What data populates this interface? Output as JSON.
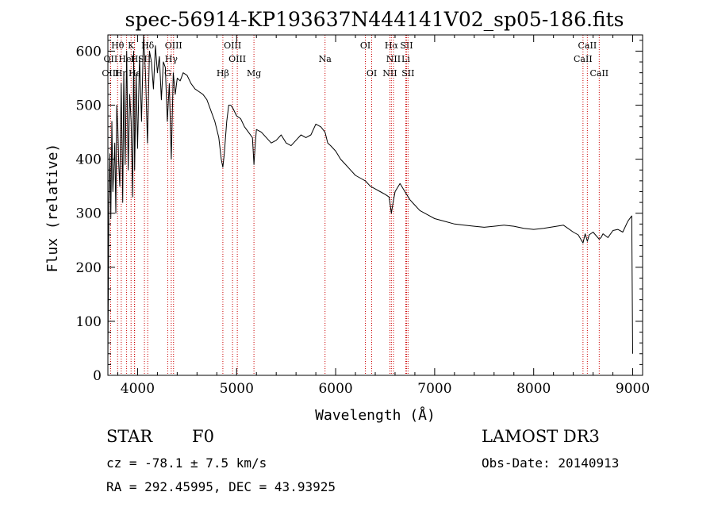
{
  "chart_data": {
    "type": "line",
    "title": "spec-56914-KP193637N444141V02_sp05-186.fits",
    "xlabel": "Wavelength (Å)",
    "ylabel": "Flux (relative)",
    "xlim": [
      3700,
      9100
    ],
    "ylim": [
      0,
      630
    ],
    "x_ticks": [
      4000,
      5000,
      6000,
      7000,
      8000,
      9000
    ],
    "y_ticks": [
      0,
      100,
      200,
      300,
      400,
      500,
      600
    ],
    "series": [
      {
        "name": "spectrum",
        "x": [
          3700,
          3710,
          3720,
          3730,
          3740,
          3750,
          3760,
          3770,
          3780,
          3790,
          3800,
          3810,
          3820,
          3835,
          3850,
          3860,
          3875,
          3890,
          3905,
          3920,
          3935,
          3950,
          3960,
          3970,
          3985,
          4000,
          4020,
          4040,
          4060,
          4080,
          4100,
          4120,
          4140,
          4160,
          4180,
          4200,
          4220,
          4240,
          4260,
          4280,
          4300,
          4320,
          4340,
          4360,
          4380,
          4400,
          4430,
          4460,
          4500,
          4540,
          4580,
          4620,
          4660,
          4700,
          4740,
          4780,
          4820,
          4845,
          4861,
          4875,
          4900,
          4920,
          4940,
          4960,
          5000,
          5040,
          5080,
          5120,
          5160,
          5175,
          5185,
          5200,
          5250,
          5300,
          5350,
          5400,
          5450,
          5500,
          5550,
          5600,
          5650,
          5700,
          5750,
          5800,
          5850,
          5893,
          5920,
          5950,
          6000,
          6050,
          6100,
          6150,
          6200,
          6250,
          6300,
          6350,
          6400,
          6450,
          6500,
          6540,
          6563,
          6580,
          6600,
          6650,
          6700,
          6750,
          6800,
          6850,
          6900,
          6950,
          7000,
          7100,
          7200,
          7300,
          7400,
          7500,
          7600,
          7700,
          7800,
          7900,
          8000,
          8100,
          8200,
          8300,
          8400,
          8450,
          8498,
          8520,
          8542,
          8560,
          8600,
          8662,
          8680,
          8700,
          8750,
          8800,
          8850,
          8900,
          8950,
          8990,
          9000
        ],
        "y": [
          30,
          320,
          410,
          290,
          470,
          340,
          380,
          430,
          300,
          500,
          460,
          390,
          350,
          540,
          320,
          560,
          390,
          600,
          380,
          520,
          470,
          330,
          600,
          380,
          560,
          420,
          590,
          470,
          630,
          560,
          430,
          600,
          580,
          530,
          610,
          560,
          590,
          510,
          580,
          570,
          470,
          540,
          400,
          560,
          520,
          550,
          545,
          560,
          555,
          540,
          530,
          525,
          520,
          510,
          490,
          470,
          440,
          400,
          385,
          410,
          470,
          500,
          500,
          495,
          480,
          475,
          460,
          450,
          440,
          390,
          420,
          455,
          450,
          440,
          430,
          435,
          445,
          430,
          425,
          435,
          445,
          440,
          445,
          465,
          460,
          450,
          430,
          425,
          415,
          400,
          390,
          380,
          370,
          365,
          360,
          350,
          345,
          340,
          335,
          330,
          300,
          320,
          340,
          355,
          340,
          325,
          315,
          305,
          300,
          295,
          290,
          285,
          280,
          278,
          276,
          274,
          276,
          278,
          276,
          272,
          270,
          272,
          275,
          278,
          265,
          260,
          245,
          262,
          248,
          260,
          265,
          252,
          255,
          262,
          255,
          268,
          270,
          265,
          285,
          295,
          40
        ]
      }
    ],
    "line_markers": [
      {
        "label": "Hθ",
        "x": 3798,
        "row": 1
      },
      {
        "label": "K",
        "x": 3934,
        "row": 1
      },
      {
        "label": "Hδ",
        "x": 4102,
        "row": 1
      },
      {
        "label": "OIII",
        "x": 4363,
        "row": 1
      },
      {
        "label": "OIII",
        "x": 4959,
        "row": 1
      },
      {
        "label": "OI",
        "x": 6300,
        "row": 1
      },
      {
        "label": "Hα",
        "x": 6563,
        "row": 1
      },
      {
        "label": "SII",
        "x": 6716,
        "row": 1
      },
      {
        "label": "CaII",
        "x": 8542,
        "row": 1
      },
      {
        "label": "OII",
        "x": 3727,
        "row": 2
      },
      {
        "label": "HeI",
        "x": 3889,
        "row": 2
      },
      {
        "label": "H",
        "x": 3968,
        "row": 2
      },
      {
        "label": "SII",
        "x": 4069,
        "row": 2
      },
      {
        "label": "Hγ",
        "x": 4340,
        "row": 2
      },
      {
        "label": "OIII",
        "x": 5007,
        "row": 2
      },
      {
        "label": "Na",
        "x": 5893,
        "row": 2
      },
      {
        "label": "NII",
        "x": 6584,
        "row": 2
      },
      {
        "label": "Li",
        "x": 6708,
        "row": 2
      },
      {
        "label": "CaII",
        "x": 8498,
        "row": 2
      },
      {
        "label": "OIII",
        "x": 3727,
        "row": 3
      },
      {
        "label": "Hη",
        "x": 3835,
        "row": 3
      },
      {
        "label": "Hε",
        "x": 3970,
        "row": 3
      },
      {
        "label": "G",
        "x": 4304,
        "row": 3
      },
      {
        "label": "Hβ",
        "x": 4861,
        "row": 3
      },
      {
        "label": "Mg",
        "x": 5175,
        "row": 3
      },
      {
        "label": "OI",
        "x": 6364,
        "row": 3
      },
      {
        "label": "NII",
        "x": 6548,
        "row": 3
      },
      {
        "label": "SII",
        "x": 6731,
        "row": 3
      },
      {
        "label": "CaII",
        "x": 8662,
        "row": 3
      }
    ],
    "colors": {
      "spectrum": "#000000",
      "markers": "#cc0000"
    }
  },
  "info": {
    "object_class": "STAR",
    "subclass": "F0",
    "survey": "LAMOST DR3",
    "redshift": "cz = -78.1 ± 7.5 km/s",
    "obs_date": "Obs-Date: 20140913",
    "coords": "RA = 292.45995, DEC =  43.93925"
  }
}
